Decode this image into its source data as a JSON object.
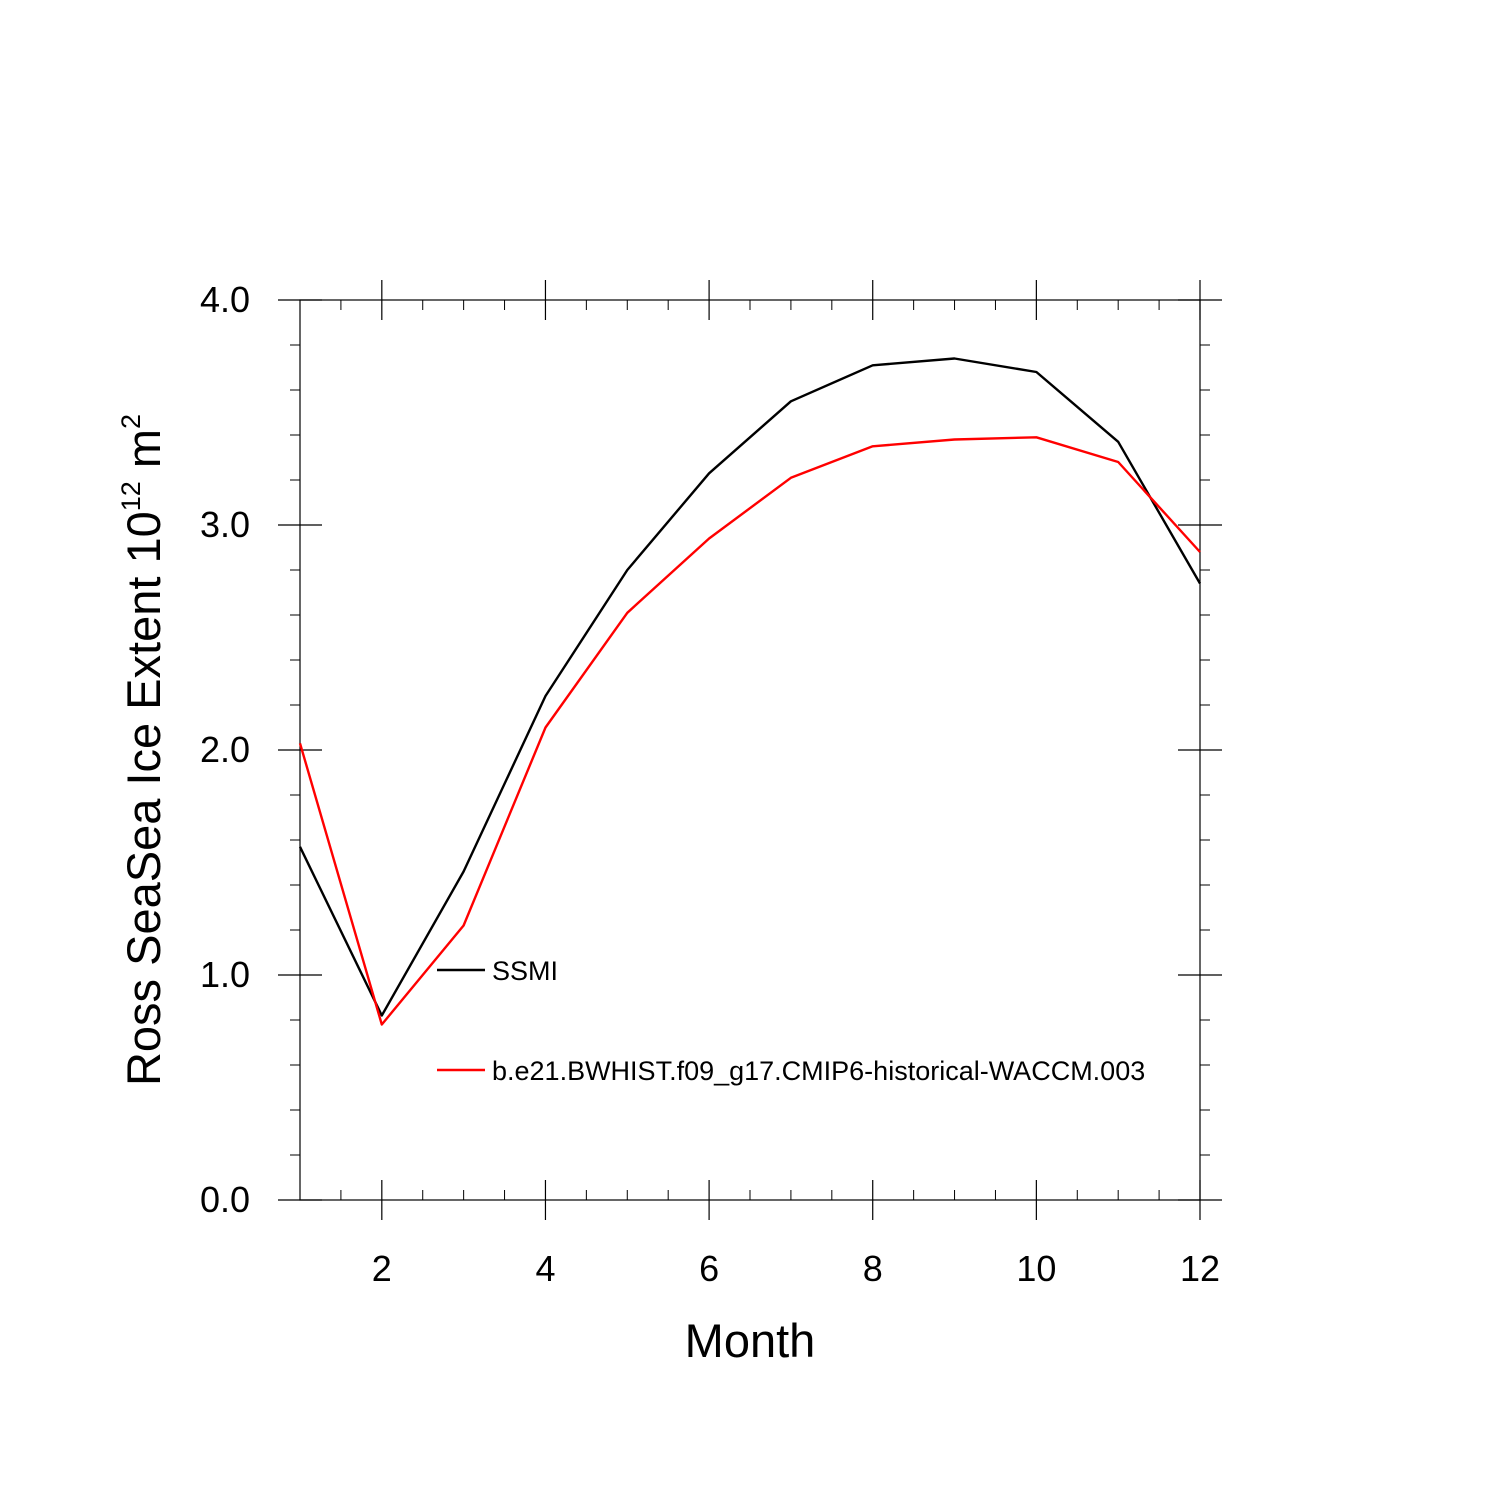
{
  "chart_data": {
    "type": "line",
    "xlabel": "Month",
    "ylabel_main": "Ross SeaSea Ice Extent 10",
    "ylabel_exp1": "12",
    "ylabel_unit": " m",
    "ylabel_exp2": "2",
    "xlim": [
      1,
      12
    ],
    "ylim": [
      0,
      4
    ],
    "x_ticks": [
      2,
      4,
      6,
      8,
      10,
      12
    ],
    "x_tick_labels": [
      "2",
      "4",
      "6",
      "8",
      "10",
      "12"
    ],
    "y_ticks": [
      0,
      1,
      2,
      3,
      4
    ],
    "y_tick_labels": [
      "0.0",
      "1.0",
      "2.0",
      "3.0",
      "4.0"
    ],
    "x": [
      1,
      2,
      3,
      4,
      5,
      6,
      7,
      8,
      9,
      10,
      11,
      12
    ],
    "series": [
      {
        "name": "SSMI",
        "color": "#000000",
        "values": [
          1.57,
          0.82,
          1.46,
          2.24,
          2.8,
          3.23,
          3.55,
          3.71,
          3.74,
          3.68,
          3.37,
          2.74
        ]
      },
      {
        "name": "b.e21.BWHIST.f09_g17.CMIP6-historical-WACCM.003",
        "color": "#ff0000",
        "values": [
          2.03,
          0.78,
          1.22,
          2.1,
          2.61,
          2.94,
          3.21,
          3.35,
          3.38,
          3.39,
          3.28,
          2.88
        ]
      }
    ],
    "legend_placement": "lower-left inside plot"
  }
}
